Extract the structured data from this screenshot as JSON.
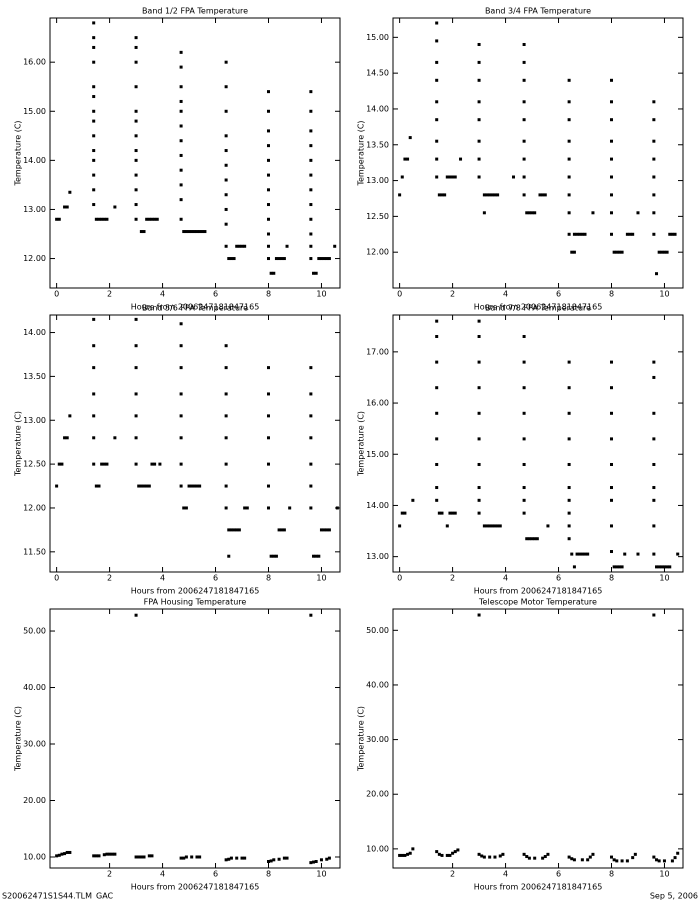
{
  "chart_data": [
    {
      "type": "scatter",
      "title": "Band 1/2 FPA Temperature",
      "xlabel": "Hours from 2006247181847165",
      "ylabel": "Temperature (C)",
      "color": "#000000",
      "xlim": [
        -0.25,
        10.7
      ],
      "xticks": [
        0,
        2,
        4,
        6,
        8,
        10
      ],
      "ylim": [
        11.4,
        16.9
      ],
      "yticks": [
        {
          "value": 12,
          "label": "12.00"
        },
        {
          "value": 13,
          "label": "13.00"
        },
        {
          "value": 14,
          "label": "14.00"
        },
        {
          "value": 15,
          "label": "15.00"
        },
        {
          "value": 16,
          "label": "16.00"
        }
      ],
      "x": [
        0,
        0.1,
        0.3,
        0.4,
        0.5,
        1.4,
        1.4,
        1.4,
        1.4,
        1.4,
        1.4,
        1.4,
        1.4,
        1.4,
        1.4,
        1.4,
        1.4,
        1.4,
        1.4,
        1.5,
        1.6,
        1.7,
        1.8,
        1.9,
        2.2,
        3,
        3,
        3,
        3,
        3,
        3,
        3,
        3,
        3,
        3,
        3,
        3,
        3,
        3.2,
        3.3,
        3.4,
        3.5,
        3.6,
        3.7,
        3.8,
        4.7,
        4.7,
        4.7,
        4.7,
        4.7,
        4.7,
        4.7,
        4.7,
        4.7,
        4.7,
        4.7,
        4.7,
        4.8,
        4.9,
        5,
        5.1,
        5.2,
        5.3,
        5.4,
        5.5,
        5.6,
        6.4,
        6.4,
        6.4,
        6.4,
        6.4,
        6.4,
        6.4,
        6.4,
        6.4,
        6.4,
        6.4,
        6.5,
        6.6,
        6.7,
        6.8,
        6.9,
        7,
        7.1,
        8,
        8,
        8,
        8,
        8,
        8,
        8,
        8,
        8,
        8,
        8,
        8,
        8.1,
        8.2,
        8.3,
        8.4,
        8.5,
        8.6,
        8.7,
        9.6,
        9.6,
        9.6,
        9.6,
        9.6,
        9.6,
        9.6,
        9.6,
        9.6,
        9.6,
        9.6,
        9.6,
        9.7,
        9.8,
        9.9,
        10,
        10.1,
        10.2,
        10.3,
        10.5
      ],
      "values": [
        12.8,
        12.8,
        13.05,
        13.05,
        13.35,
        16.8,
        16.5,
        16.3,
        16,
        15.5,
        15.3,
        15,
        14.8,
        14.5,
        14.2,
        14,
        13.7,
        13.4,
        13.1,
        12.8,
        12.8,
        12.8,
        12.8,
        12.8,
        13.05,
        16.5,
        16.3,
        16,
        15.5,
        15,
        14.8,
        14.5,
        14.2,
        14,
        13.7,
        13.4,
        13.1,
        12.8,
        12.55,
        12.55,
        12.8,
        12.8,
        12.8,
        12.8,
        12.8,
        16.2,
        15.9,
        15.5,
        15.2,
        15,
        14.7,
        14.4,
        14.1,
        13.8,
        13.5,
        13.2,
        12.8,
        12.55,
        12.55,
        12.55,
        12.55,
        12.55,
        12.55,
        12.55,
        12.55,
        12.55,
        16,
        15.5,
        15,
        14.5,
        14.2,
        13.9,
        13.6,
        13.3,
        13,
        12.7,
        12.25,
        12,
        12,
        12,
        12.25,
        12.25,
        12.25,
        12.25,
        15.4,
        15,
        14.6,
        14.3,
        14,
        13.7,
        13.4,
        13.1,
        12.8,
        12.5,
        12.25,
        12,
        11.7,
        11.7,
        12,
        12,
        12,
        12,
        12.25,
        15.4,
        15,
        14.6,
        14.3,
        14,
        13.7,
        13.4,
        13.1,
        12.8,
        12.5,
        12.25,
        12,
        11.7,
        11.7,
        12,
        12,
        12,
        12,
        12,
        12.25
      ]
    },
    {
      "type": "scatter",
      "title": "Band 3/4 FPA Temperature",
      "xlabel": "Hours from 2006247181847165",
      "ylabel": "Temperature (C)",
      "color": "#000000",
      "xlim": [
        -0.25,
        10.7
      ],
      "xticks": [
        0,
        2,
        4,
        6,
        8,
        10
      ],
      "ylim": [
        11.5,
        15.27
      ],
      "yticks": [
        {
          "value": 12,
          "label": "12.00"
        },
        {
          "value": 12.5,
          "label": "12.50"
        },
        {
          "value": 13,
          "label": "13.00"
        },
        {
          "value": 13.5,
          "label": "13.50"
        },
        {
          "value": 14,
          "label": "14.00"
        },
        {
          "value": 14.5,
          "label": "14.50"
        },
        {
          "value": 15,
          "label": "15.00"
        }
      ],
      "x": [
        0,
        0.1,
        0.2,
        0.3,
        0.4,
        1.4,
        1.4,
        1.4,
        1.4,
        1.4,
        1.4,
        1.4,
        1.4,
        1.4,
        1.5,
        1.6,
        1.7,
        1.8,
        1.9,
        2,
        2.1,
        2.3,
        3,
        3,
        3,
        3,
        3,
        3,
        3,
        3,
        3.2,
        3.2,
        3.3,
        3.4,
        3.5,
        3.6,
        3.7,
        4.3,
        4.7,
        4.7,
        4.7,
        4.7,
        4.7,
        4.7,
        4.7,
        4.7,
        4.7,
        4.8,
        4.9,
        5,
        5.1,
        5.3,
        5.4,
        5.5,
        6.4,
        6.4,
        6.4,
        6.4,
        6.4,
        6.4,
        6.4,
        6.4,
        6.4,
        6.5,
        6.6,
        6.6,
        6.7,
        6.8,
        6.9,
        7,
        7.3,
        8,
        8,
        8,
        8,
        8,
        8,
        8,
        8,
        8,
        8.1,
        8.2,
        8.3,
        8.4,
        8.6,
        8.7,
        8.8,
        9,
        9.6,
        9.6,
        9.6,
        9.6,
        9.6,
        9.6,
        9.6,
        9.6,
        9.7,
        9.8,
        9.9,
        10,
        10.1,
        10.2,
        10.3,
        10.4
      ],
      "values": [
        12.8,
        13.05,
        13.3,
        13.3,
        13.6,
        15.2,
        14.95,
        14.65,
        14.4,
        14.1,
        13.85,
        13.55,
        13.3,
        13.05,
        12.8,
        12.8,
        12.8,
        13.05,
        13.05,
        13.05,
        13.05,
        13.3,
        14.9,
        14.65,
        14.4,
        14.1,
        13.85,
        13.55,
        13.3,
        13.05,
        12.55,
        12.8,
        12.8,
        12.8,
        12.8,
        12.8,
        12.8,
        13.05,
        14.9,
        14.65,
        14.4,
        14.1,
        13.85,
        13.55,
        13.3,
        13.05,
        12.8,
        12.55,
        12.55,
        12.55,
        12.55,
        12.8,
        12.8,
        12.8,
        14.4,
        14.1,
        13.85,
        13.55,
        13.3,
        13.05,
        12.8,
        12.55,
        12.25,
        12,
        12,
        12.25,
        12.25,
        12.25,
        12.25,
        12.25,
        12.55,
        14.4,
        14.1,
        13.85,
        13.55,
        13.3,
        13.05,
        12.8,
        12.55,
        12.25,
        12,
        12,
        12,
        12,
        12.25,
        12.25,
        12.25,
        12.55,
        14.1,
        13.85,
        13.55,
        13.3,
        13.05,
        12.8,
        12.55,
        12.25,
        11.7,
        12,
        12,
        12,
        12,
        12.25,
        12.25,
        12.25
      ]
    },
    {
      "type": "scatter",
      "title": "Band 5/6 FPA Temperature",
      "xlabel": "Hours from 2006247181847165",
      "ylabel": "Temperature (C)",
      "color": "#000000",
      "xlim": [
        -0.25,
        10.7
      ],
      "xticks": [
        0,
        2,
        4,
        6,
        8,
        10
      ],
      "ylim": [
        11.27,
        14.2
      ],
      "yticks": [
        {
          "value": 11.5,
          "label": "11.50"
        },
        {
          "value": 12,
          "label": "12.00"
        },
        {
          "value": 12.5,
          "label": "12.50"
        },
        {
          "value": 13,
          "label": "13.00"
        },
        {
          "value": 13.5,
          "label": "13.50"
        },
        {
          "value": 14,
          "label": "14.00"
        }
      ],
      "x": [
        0,
        0.1,
        0.2,
        0.3,
        0.4,
        0.5,
        1.4,
        1.4,
        1.4,
        1.4,
        1.4,
        1.4,
        1.4,
        1.5,
        1.6,
        1.7,
        1.8,
        1.9,
        2.2,
        3,
        3,
        3,
        3,
        3,
        3,
        3,
        3.1,
        3.2,
        3.3,
        3.4,
        3.5,
        3.6,
        3.7,
        3.9,
        4.7,
        4.7,
        4.7,
        4.7,
        4.7,
        4.7,
        4.7,
        4.7,
        4.8,
        4.9,
        5,
        5.1,
        5.2,
        5.3,
        5.4,
        6.4,
        6.4,
        6.4,
        6.4,
        6.4,
        6.4,
        6.4,
        6.4,
        6.5,
        6.6,
        6.7,
        6.8,
        6.9,
        6.5,
        7.1,
        7.2,
        8,
        8,
        8,
        8,
        8,
        8,
        8,
        8.1,
        8.2,
        8.3,
        8.4,
        8.5,
        8.6,
        8.8,
        9.6,
        9.6,
        9.6,
        9.6,
        9.6,
        9.6,
        9.6,
        9.7,
        9.8,
        9.9,
        10,
        10.1,
        10.2,
        10.3,
        10.6
      ],
      "values": [
        12.25,
        12.5,
        12.5,
        12.8,
        12.8,
        13.05,
        14.15,
        13.85,
        13.6,
        13.3,
        13.05,
        12.8,
        12.5,
        12.25,
        12.25,
        12.5,
        12.5,
        12.5,
        12.8,
        14.15,
        13.85,
        13.6,
        13.3,
        13.05,
        12.8,
        12.5,
        12.25,
        12.25,
        12.25,
        12.25,
        12.25,
        12.5,
        12.5,
        12.5,
        14.1,
        13.85,
        13.6,
        13.3,
        13.05,
        12.8,
        12.5,
        12.25,
        12,
        12,
        12.25,
        12.25,
        12.25,
        12.25,
        12.25,
        13.85,
        13.6,
        13.3,
        13.05,
        12.8,
        12.5,
        12.25,
        12,
        11.75,
        11.75,
        11.75,
        11.75,
        11.75,
        11.45,
        12,
        12,
        13.6,
        13.3,
        13.05,
        12.8,
        12.5,
        12.25,
        12,
        11.45,
        11.45,
        11.45,
        11.75,
        11.75,
        11.75,
        12,
        13.6,
        13.3,
        13.05,
        12.8,
        12.5,
        12.25,
        12,
        11.45,
        11.45,
        11.45,
        11.75,
        11.75,
        11.75,
        11.75,
        12
      ]
    },
    {
      "type": "scatter",
      "title": "Band 7/8 FPA Temperature",
      "xlabel": "Hours from 2006247181847165",
      "ylabel": "Temperature (C)",
      "color": "#000000",
      "xlim": [
        -0.25,
        10.7
      ],
      "xticks": [
        0,
        2,
        4,
        6,
        8,
        10
      ],
      "ylim": [
        12.7,
        17.72
      ],
      "yticks": [
        {
          "value": 13,
          "label": "13.00"
        },
        {
          "value": 14,
          "label": "14.00"
        },
        {
          "value": 15,
          "label": "15.00"
        },
        {
          "value": 16,
          "label": "16.00"
        },
        {
          "value": 17,
          "label": "17.00"
        }
      ],
      "x": [
        0,
        0.1,
        0.2,
        0.5,
        1.4,
        1.4,
        1.4,
        1.4,
        1.4,
        1.4,
        1.4,
        1.4,
        1.4,
        1.5,
        1.6,
        1.8,
        1.9,
        2,
        2.1,
        3,
        3,
        3,
        3,
        3,
        3,
        3,
        3,
        3,
        3,
        3.2,
        3.3,
        3.4,
        3.5,
        3.6,
        3.7,
        3.8,
        4.7,
        4.7,
        4.7,
        4.7,
        4.7,
        4.7,
        4.7,
        4.7,
        4.7,
        4.8,
        4.9,
        5,
        5.1,
        5.2,
        5.6,
        6.4,
        6.4,
        6.4,
        6.4,
        6.4,
        6.4,
        6.4,
        6.4,
        6.4,
        6.4,
        6.5,
        6.6,
        6.7,
        6.8,
        6.9,
        7,
        7.1,
        8,
        8,
        8,
        8,
        8,
        8,
        8,
        8,
        8,
        8.1,
        8.2,
        8.3,
        8.4,
        8.5,
        9,
        9.6,
        9.6,
        9.6,
        9.6,
        9.6,
        9.6,
        9.6,
        9.6,
        9.6,
        9.7,
        9.8,
        9.9,
        10,
        10.1,
        10.2,
        10.5
      ],
      "values": [
        13.6,
        13.85,
        13.85,
        14.1,
        17.6,
        17.3,
        16.8,
        16.3,
        15.8,
        15.3,
        14.8,
        14.35,
        14.1,
        13.85,
        13.85,
        13.6,
        13.85,
        13.85,
        13.85,
        17.6,
        17.3,
        16.8,
        16.3,
        15.8,
        15.3,
        14.8,
        14.35,
        14.1,
        13.85,
        13.6,
        13.6,
        13.6,
        13.6,
        13.6,
        13.6,
        13.6,
        17.3,
        16.8,
        16.3,
        15.8,
        15.3,
        14.8,
        14.35,
        14.1,
        13.85,
        13.35,
        13.35,
        13.35,
        13.35,
        13.35,
        13.6,
        16.8,
        16.3,
        15.8,
        15.3,
        14.8,
        14.35,
        14.1,
        13.85,
        13.6,
        13.35,
        13.05,
        12.8,
        13.05,
        13.05,
        13.05,
        13.05,
        13.05,
        16.8,
        16.3,
        15.8,
        15.3,
        14.8,
        14.35,
        14.1,
        13.6,
        13.1,
        12.8,
        12.8,
        12.8,
        12.8,
        13.05,
        13.05,
        16.8,
        16.5,
        15.8,
        15.3,
        14.8,
        14.35,
        14.1,
        13.6,
        13.05,
        12.8,
        12.8,
        12.8,
        12.8,
        12.8,
        12.8,
        13.05
      ]
    },
    {
      "type": "scatter",
      "title": "FPA Housing Temperature",
      "xlabel": "Hours from 2006247181847165",
      "ylabel": "Temperature (C)",
      "color": "#000000",
      "xlim": [
        -0.25,
        10.7
      ],
      "xticks": [
        2,
        4,
        6,
        8,
        10
      ],
      "ylim": [
        8.05,
        53.9
      ],
      "yticks": [
        {
          "value": 10,
          "label": "10.00"
        },
        {
          "value": 20,
          "label": "20.00"
        },
        {
          "value": 30,
          "label": "30.00"
        },
        {
          "value": 40,
          "label": "40.00"
        },
        {
          "value": 50,
          "label": "50.00"
        }
      ],
      "x": [
        3,
        9.6,
        0,
        0.1,
        0.2,
        0.3,
        0.4,
        0.5,
        1.4,
        1.5,
        1.6,
        1.8,
        1.9,
        2,
        2.1,
        2.2,
        3,
        3.1,
        3.2,
        3.3,
        3.5,
        3.6,
        4.7,
        4.8,
        4.9,
        5.1,
        5.3,
        5.4,
        6.4,
        6.5,
        6.6,
        6.8,
        7,
        7.1,
        8,
        8.1,
        8.2,
        8.4,
        8.6,
        8.7,
        9.6,
        9.7,
        9.8,
        10,
        10.2,
        10.3
      ],
      "values": [
        52.8,
        52.8,
        10.2,
        10.3,
        10.5,
        10.6,
        10.8,
        10.8,
        10.2,
        10.2,
        10.2,
        10.4,
        10.5,
        10.5,
        10.5,
        10.5,
        10,
        10,
        10,
        10,
        10.2,
        10.2,
        9.8,
        9.8,
        10,
        10,
        10,
        10,
        9.5,
        9.6,
        9.8,
        9.8,
        9.8,
        9.8,
        9.2,
        9.3,
        9.5,
        9.6,
        9.8,
        9.8,
        9,
        9.1,
        9.2,
        9.5,
        9.6,
        9.8
      ]
    },
    {
      "type": "scatter",
      "title": "Telescope Motor Temperature",
      "xlabel": "Hours from 2006247181847165",
      "ylabel": "Temperature (C)",
      "color": "#000000",
      "xlim": [
        -0.25,
        10.7
      ],
      "xticks": [
        2,
        4,
        6,
        8,
        10
      ],
      "ylim": [
        6.5,
        53.9
      ],
      "yticks": [
        {
          "value": 10,
          "label": "10.00"
        },
        {
          "value": 20,
          "label": "20.00"
        },
        {
          "value": 30,
          "label": "30.00"
        },
        {
          "value": 40,
          "label": "40.00"
        },
        {
          "value": 50,
          "label": "50.00"
        }
      ],
      "x": [
        3,
        9.6,
        0,
        0.1,
        0.2,
        0.3,
        0.4,
        0.5,
        1.4,
        1.5,
        1.6,
        1.8,
        1.9,
        2,
        2.1,
        2.2,
        3,
        3.1,
        3.2,
        3.4,
        3.6,
        3.8,
        3.9,
        4.7,
        4.8,
        4.9,
        5.1,
        5.4,
        5.5,
        5.6,
        6.4,
        6.5,
        6.6,
        6.9,
        7.1,
        7.2,
        7.3,
        8,
        8.1,
        8.2,
        8.4,
        8.6,
        8.8,
        8.9,
        9.6,
        9.7,
        9.8,
        10,
        10.3,
        10.4,
        10.5
      ],
      "values": [
        52.8,
        52.8,
        8.8,
        8.8,
        8.8,
        9,
        9.2,
        10,
        9.5,
        9,
        8.8,
        8.8,
        8.8,
        9.2,
        9.5,
        9.8,
        9,
        8.7,
        8.5,
        8.5,
        8.5,
        8.7,
        9,
        9,
        8.6,
        8.3,
        8.3,
        8.3,
        8.6,
        9,
        8.5,
        8.2,
        8,
        8,
        8,
        8.5,
        9,
        8.5,
        8,
        7.8,
        7.8,
        7.8,
        8.4,
        9,
        8.5,
        8,
        7.8,
        7.8,
        7.8,
        8.4,
        9.2
      ]
    }
  ],
  "footer": {
    "left": "S20062471S1S44.TLM_GAC",
    "right": "Sep  5, 2006"
  }
}
